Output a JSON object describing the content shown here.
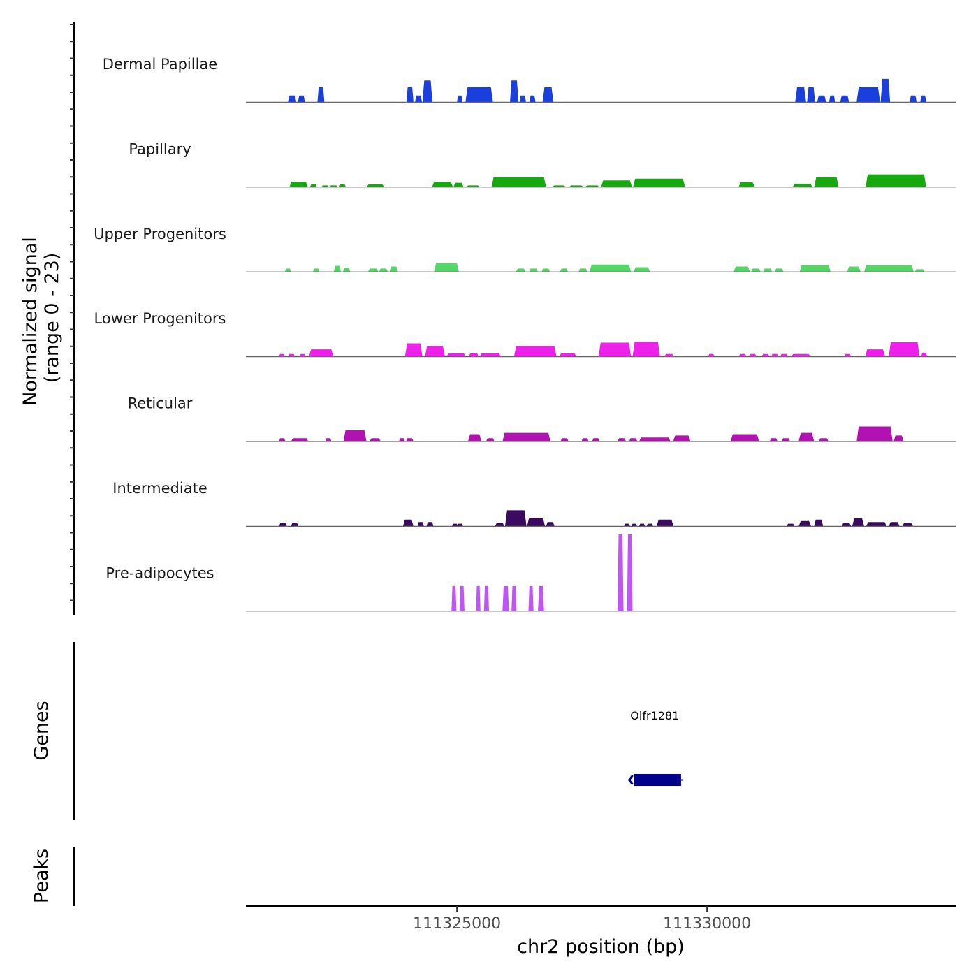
{
  "chart_data": {
    "type": "area",
    "title": "",
    "ylabel": "Normalized signal\n(range 0 - 23)",
    "ylabel_lines": [
      "Normalized signal",
      "(range 0 - 23)"
    ],
    "xlabel": "chr2 position (bp)",
    "chromosome": "chr2",
    "xlim": [
      111320780,
      111334970
    ],
    "ylim": [
      0,
      23
    ],
    "x_ticks": [
      111325000,
      111330000
    ],
    "x_tick_labels": [
      "111325000",
      "111330000"
    ],
    "grid": false,
    "legend": "none",
    "tracks": [
      {
        "name": "Dermal Papillae",
        "color": "#1a3fdc",
        "peaks": [
          [
            111321620,
            111321790,
            2
          ],
          [
            111321820,
            111321960,
            2
          ],
          [
            111322210,
            111322350,
            4.5
          ],
          [
            111323990,
            111324130,
            4.5
          ],
          [
            111324160,
            111324300,
            2
          ],
          [
            111324310,
            111324510,
            6.5
          ],
          [
            111325000,
            111325110,
            2
          ],
          [
            111325170,
            111325720,
            4.5
          ],
          [
            111326060,
            111326230,
            6.5
          ],
          [
            111326250,
            111326380,
            2
          ],
          [
            111326450,
            111326570,
            2
          ],
          [
            111326710,
            111326930,
            4.5
          ],
          [
            111331760,
            111331980,
            4.5
          ],
          [
            111332000,
            111332160,
            4.5
          ],
          [
            111332200,
            111332380,
            2
          ],
          [
            111332440,
            111332560,
            2
          ],
          [
            111332660,
            111332840,
            2
          ],
          [
            111332990,
            111333460,
            4.5
          ],
          [
            111333470,
            111333660,
            7
          ],
          [
            111334050,
            111334190,
            2
          ],
          [
            111334260,
            111334380,
            2
          ]
        ]
      },
      {
        "name": "Papillary",
        "color": "#16a80f",
        "peaks": [
          [
            111321650,
            111322020,
            1.6
          ],
          [
            111322060,
            111322200,
            0.8
          ],
          [
            111322290,
            111322440,
            0.5
          ],
          [
            111322450,
            111322620,
            0.5
          ],
          [
            111322630,
            111322780,
            0.8
          ],
          [
            111323190,
            111323550,
            0.8
          ],
          [
            111324500,
            111324920,
            1.6
          ],
          [
            111324930,
            111325130,
            1.3
          ],
          [
            111325180,
            111325460,
            0.5
          ],
          [
            111325690,
            111326780,
            3
          ],
          [
            111326900,
            111327180,
            0.5
          ],
          [
            111327240,
            111327530,
            0.5
          ],
          [
            111327560,
            111327850,
            0.5
          ],
          [
            111327880,
            111328500,
            2
          ],
          [
            111328520,
            111329560,
            2.5
          ],
          [
            111330630,
            111330950,
            1.5
          ],
          [
            111331710,
            111332110,
            1
          ],
          [
            111332140,
            111332630,
            3
          ],
          [
            111333170,
            111334380,
            3.8
          ]
        ]
      },
      {
        "name": "Upper Progenitors",
        "color": "#55d765",
        "peaks": [
          [
            111321560,
            111321680,
            1
          ],
          [
            111322120,
            111322250,
            1
          ],
          [
            111322540,
            111322680,
            1.8
          ],
          [
            111322720,
            111322870,
            1.2
          ],
          [
            111323220,
            111323430,
            1
          ],
          [
            111323440,
            111323620,
            1
          ],
          [
            111323650,
            111323820,
            1.6
          ],
          [
            111324540,
            111325040,
            2.6
          ],
          [
            111326180,
            111326370,
            1
          ],
          [
            111326440,
            111326620,
            1
          ],
          [
            111326690,
            111326860,
            1
          ],
          [
            111327060,
            111327220,
            1
          ],
          [
            111327430,
            111327610,
            1
          ],
          [
            111327650,
            111328480,
            2.2
          ],
          [
            111328530,
            111328860,
            1.4
          ],
          [
            111330530,
            111330860,
            1.6
          ],
          [
            111330880,
            111331070,
            1
          ],
          [
            111331120,
            111331300,
            1
          ],
          [
            111331350,
            111331530,
            1
          ],
          [
            111331850,
            111332470,
            2
          ],
          [
            111332800,
            111333070,
            1.6
          ],
          [
            111333140,
            111334130,
            2
          ],
          [
            111334150,
            111334350,
            0.8
          ]
        ]
      },
      {
        "name": "Lower Progenitors",
        "color": "#ee21ea",
        "peaks": [
          [
            111321440,
            111321560,
            0.8
          ],
          [
            111321620,
            111321760,
            0.8
          ],
          [
            111321840,
            111321980,
            0.8
          ],
          [
            111322040,
            111322530,
            2.2
          ],
          [
            111323960,
            111324310,
            4
          ],
          [
            111324360,
            111324760,
            3.2
          ],
          [
            111324790,
            111325180,
            1
          ],
          [
            111325230,
            111325440,
            1
          ],
          [
            111325450,
            111325880,
            1
          ],
          [
            111326140,
            111326990,
            3.2
          ],
          [
            111327040,
            111327390,
            1
          ],
          [
            111327830,
            111328480,
            4.2
          ],
          [
            111328510,
            111329060,
            4.5
          ],
          [
            111329140,
            111329340,
            0.8
          ],
          [
            111330020,
            111330150,
            0.8
          ],
          [
            111330630,
            111330790,
            0.8
          ],
          [
            111330830,
            111330990,
            0.8
          ],
          [
            111331090,
            111331250,
            0.8
          ],
          [
            111331280,
            111331430,
            0.8
          ],
          [
            111331460,
            111331620,
            0.8
          ],
          [
            111331680,
            111332070,
            0.8
          ],
          [
            111332740,
            111332880,
            0.8
          ],
          [
            111333160,
            111333560,
            2.2
          ],
          [
            111333630,
            111334250,
            4.3
          ],
          [
            111334280,
            111334400,
            1.2
          ]
        ]
      },
      {
        "name": "Reticular",
        "color": "#b312b2",
        "peaks": [
          [
            111321440,
            111321570,
            1
          ],
          [
            111321680,
            111322030,
            1
          ],
          [
            111322370,
            111322490,
            1
          ],
          [
            111322730,
            111323190,
            3.4
          ],
          [
            111323250,
            111323480,
            1
          ],
          [
            111323840,
            111323960,
            1
          ],
          [
            111323980,
            111324130,
            1
          ],
          [
            111325220,
            111325490,
            2.2
          ],
          [
            111325580,
            111325750,
            1
          ],
          [
            111325910,
            111326870,
            2.6
          ],
          [
            111327070,
            111327230,
            1
          ],
          [
            111327490,
            111327630,
            1
          ],
          [
            111327700,
            111327850,
            1
          ],
          [
            111328210,
            111328380,
            1
          ],
          [
            111328440,
            111328610,
            1
          ],
          [
            111328640,
            111329270,
            1.2
          ],
          [
            111329320,
            111329670,
            1.8
          ],
          [
            111330470,
            111331040,
            2.2
          ],
          [
            111331250,
            111331410,
            1
          ],
          [
            111331490,
            111331660,
            1
          ],
          [
            111331830,
            111332140,
            2.6
          ],
          [
            111332230,
            111332430,
            1
          ],
          [
            111332990,
            111333710,
            4.5
          ],
          [
            111333730,
            111333930,
            1.8
          ]
        ]
      },
      {
        "name": "Intermediate",
        "color": "#3b0a60",
        "peaks": [
          [
            111321440,
            111321600,
            1
          ],
          [
            111321680,
            111321830,
            1
          ],
          [
            111323920,
            111324130,
            2
          ],
          [
            111324210,
            111324340,
            1.3
          ],
          [
            111324390,
            111324530,
            1.3
          ],
          [
            111324900,
            111325020,
            0.8
          ],
          [
            111325020,
            111325090,
            0
          ],
          [
            111325000,
            111325120,
            0.8
          ],
          [
            111325760,
            111325950,
            1
          ],
          [
            111325960,
            111326390,
            4.8
          ],
          [
            111326400,
            111326760,
            2.6
          ],
          [
            111326780,
            111326950,
            1.3
          ],
          [
            111328340,
            111328460,
            0.8
          ],
          [
            111328490,
            111328600,
            0.8
          ],
          [
            111328640,
            111328760,
            0.8
          ],
          [
            111328790,
            111328920,
            0.8
          ],
          [
            111328990,
            111329330,
            2
          ],
          [
            111331590,
            111331750,
            0.8
          ],
          [
            111331830,
            111332080,
            1.6
          ],
          [
            111332140,
            111332320,
            2
          ],
          [
            111332690,
            111332880,
            1
          ],
          [
            111332900,
            111333140,
            2.4
          ],
          [
            111333180,
            111333590,
            1.3
          ],
          [
            111333630,
            111333850,
            1.3
          ],
          [
            111333900,
            111334120,
            1
          ]
        ]
      },
      {
        "name": "Pre-adipocytes",
        "color": "#bf55f2",
        "peaks": [
          [
            111324890,
            111324990,
            7.5
          ],
          [
            111325050,
            111325150,
            7.5
          ],
          [
            111325380,
            111325470,
            7.5
          ],
          [
            111325540,
            111325640,
            7.5
          ],
          [
            111325910,
            111326040,
            7.5
          ],
          [
            111326090,
            111326190,
            7.5
          ],
          [
            111326430,
            111326530,
            7.5
          ],
          [
            111326620,
            111326740,
            7.5
          ],
          [
            111328210,
            111328330,
            23
          ],
          [
            111328400,
            111328510,
            23
          ]
        ]
      }
    ],
    "genes_track": {
      "label": "Genes",
      "genes": [
        {
          "name": "Olfr1281",
          "start": 111328540,
          "end": 111329480,
          "strand": "-",
          "color": "#00008b"
        }
      ]
    },
    "peaks_track": {
      "label": "Peaks",
      "peaks": []
    }
  }
}
